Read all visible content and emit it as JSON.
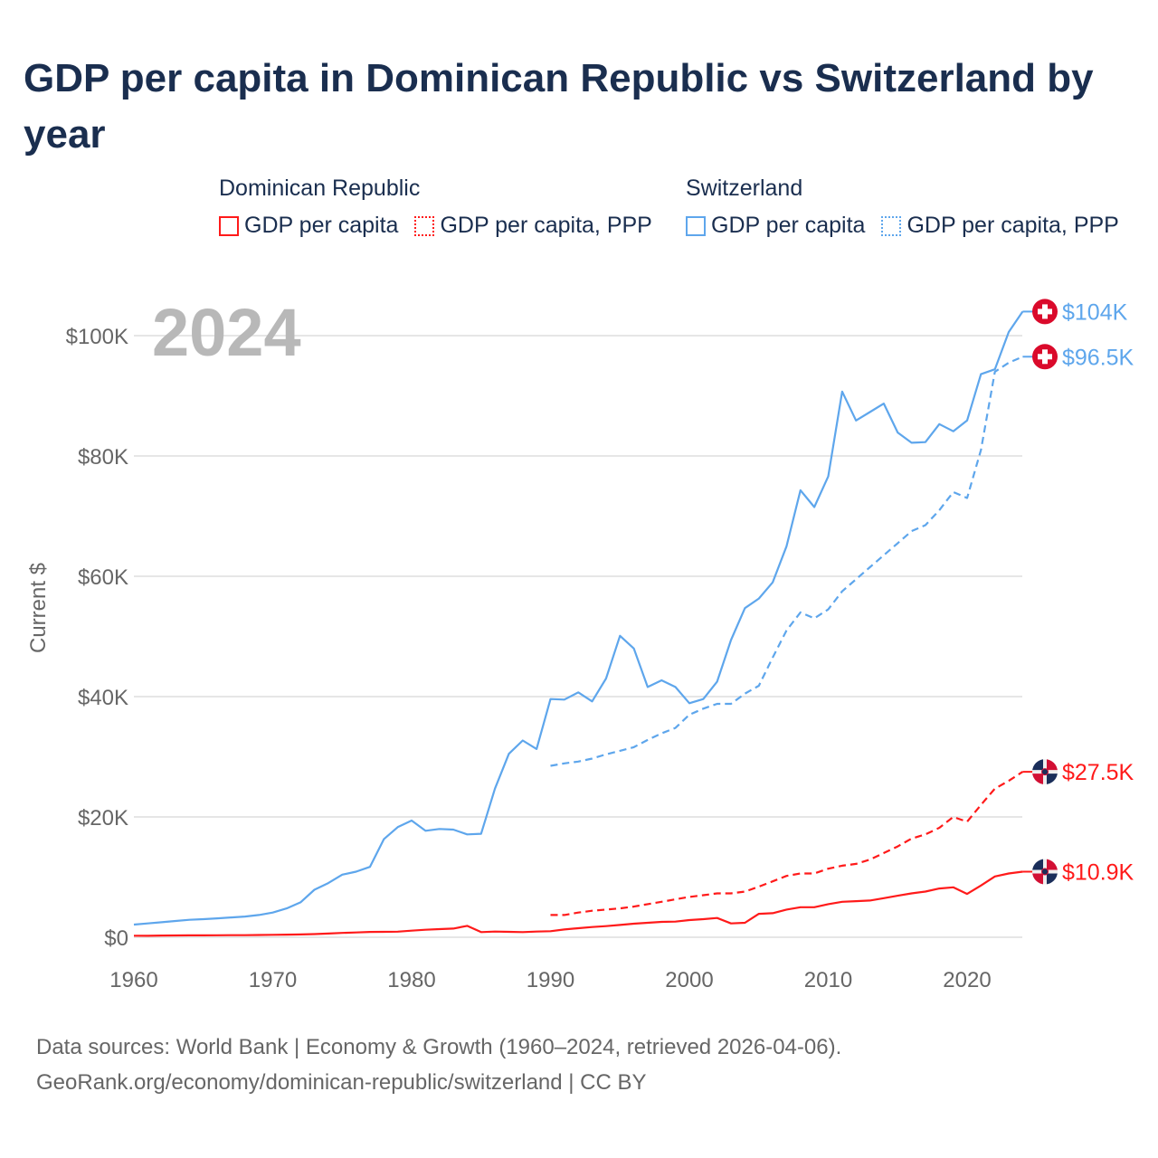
{
  "title": "GDP per capita in Dominican Republic vs Switzerland by year",
  "legend": {
    "groups": [
      {
        "name": "Dominican Republic",
        "items": [
          "GDP per capita",
          "GDP per capita, PPP"
        ],
        "color": "#ff1a1a"
      },
      {
        "name": "Switzerland",
        "items": [
          "GDP per capita",
          "GDP per capita, PPP"
        ],
        "color": "#5ea6ec"
      }
    ]
  },
  "year_watermark": "2024",
  "footer": {
    "line1": "Data sources: World Bank | Economy & Growth (1960–2024, retrieved 2026-04-06).",
    "line2": "GeoRank.org/economy/dominican-republic/switzerland | CC BY"
  },
  "chart_data": {
    "type": "line",
    "title": "GDP per capita in Dominican Republic vs Switzerland by year",
    "xlabel": "",
    "ylabel": "Current $",
    "xlim": [
      1960,
      2024
    ],
    "ylim": [
      0,
      100000
    ],
    "x_ticks": [
      1960,
      1970,
      1980,
      1990,
      2000,
      2010,
      2020
    ],
    "x_tick_labels": [
      "1960",
      "1970",
      "1980",
      "1990",
      "2000",
      "2010",
      "2020"
    ],
    "y_ticks": [
      0,
      20000,
      40000,
      60000,
      80000,
      100000
    ],
    "y_tick_labels": [
      "$0",
      "$20K",
      "$40K",
      "$60K",
      "$80K",
      "$100K"
    ],
    "grid": true,
    "legend_position": "top",
    "series": [
      {
        "name": "Switzerland GDP per capita",
        "color": "#5ea6ec",
        "dash": "solid",
        "start": 1960,
        "end_label": "$104K",
        "flag": "switzerland",
        "values": [
          2100,
          2300,
          2500,
          2700,
          2900,
          3000,
          3150,
          3300,
          3450,
          3700,
          4100,
          4800,
          5800,
          7900,
          9000,
          10400,
          10900,
          11700,
          16300,
          18300,
          19400,
          17700,
          18000,
          17900,
          17100,
          17200,
          24700,
          30500,
          32700,
          31300,
          39600,
          39500,
          40700,
          39200,
          43000,
          50100,
          48000,
          41600,
          42700,
          41600,
          38900,
          39600,
          42500,
          49400,
          54700,
          56300,
          59000,
          65000,
          74300,
          71500,
          76600,
          90700,
          85900,
          87300,
          88700,
          83900,
          82200,
          82300,
          85300,
          84100,
          85900,
          93600,
          94400,
          100600,
          104000
        ]
      },
      {
        "name": "Switzerland GDP per capita, PPP",
        "color": "#5ea6ec",
        "dash": "dashed",
        "start": 1990,
        "end_label": "$96.5K",
        "flag": "switzerland",
        "values": [
          28500,
          28900,
          29200,
          29700,
          30400,
          31000,
          31600,
          32800,
          33900,
          34800,
          37000,
          38000,
          38800,
          38800,
          40500,
          41800,
          46500,
          51000,
          54000,
          53000,
          54500,
          57500,
          59500,
          61500,
          63500,
          65500,
          67500,
          68500,
          71000,
          74000,
          73000,
          81000,
          94000,
          95500,
          96500
        ]
      },
      {
        "name": "Dominican Republic GDP per capita, PPP",
        "color": "#ff1a1a",
        "dash": "dashed",
        "start": 1990,
        "end_label": "$27.5K",
        "flag": "dominican-republic",
        "values": [
          3700,
          3700,
          4100,
          4400,
          4600,
          4800,
          5100,
          5500,
          5900,
          6300,
          6700,
          7000,
          7300,
          7300,
          7600,
          8400,
          9300,
          10200,
          10600,
          10600,
          11400,
          11900,
          12200,
          12900,
          14000,
          15100,
          16400,
          17100,
          18200,
          20000,
          19200,
          22000,
          24700,
          26000,
          27500
        ]
      },
      {
        "name": "Dominican Republic GDP per capita",
        "color": "#ff1a1a",
        "dash": "solid",
        "start": 1960,
        "end_label": "$10.9K",
        "flag": "dominican-republic",
        "values": [
          250,
          240,
          280,
          300,
          320,
          320,
          330,
          340,
          350,
          370,
          400,
          430,
          470,
          520,
          620,
          720,
          800,
          880,
          900,
          930,
          1100,
          1250,
          1350,
          1450,
          1900,
          850,
          950,
          900,
          850,
          950,
          1000,
          1300,
          1500,
          1700,
          1850,
          2050,
          2250,
          2400,
          2550,
          2600,
          2850,
          3000,
          3200,
          2300,
          2400,
          3900,
          4000,
          4600,
          5000,
          5000,
          5500,
          5900,
          6000,
          6100,
          6500,
          6900,
          7300,
          7600,
          8100,
          8300,
          7200,
          8600,
          10100,
          10600,
          10900
        ]
      }
    ]
  }
}
